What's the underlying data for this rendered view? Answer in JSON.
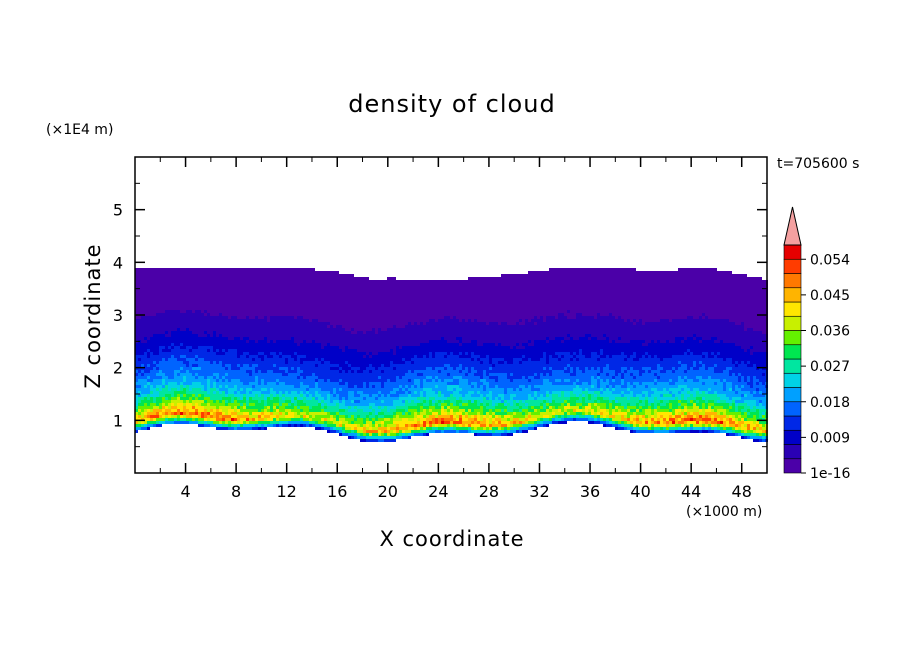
{
  "chart_data": {
    "type": "heatmap",
    "title": "density of cloud",
    "xlabel": "X coordinate",
    "ylabel": "Z coordinate",
    "x_unit": "(×1000 m)",
    "y_unit": "(×1E4 m)",
    "time_label": "t=705600 s",
    "xlim": [
      0,
      50
    ],
    "ylim": [
      0,
      6
    ],
    "x_ticks": [
      4,
      8,
      12,
      16,
      20,
      24,
      28,
      32,
      36,
      40,
      44,
      48
    ],
    "y_ticks": [
      1,
      2,
      3,
      4,
      5
    ],
    "colorbar": {
      "labels": [
        "1e-16",
        "0.009",
        "0.018",
        "0.027",
        "0.036",
        "0.045",
        "0.054"
      ],
      "colors": [
        "#4b00a8",
        "#2a00b4",
        "#0000c8",
        "#0028e6",
        "#0064ff",
        "#00a0ff",
        "#00d2e6",
        "#00e6a0",
        "#00e650",
        "#64f000",
        "#c8f000",
        "#ffe600",
        "#ffb400",
        "#ff7800",
        "#ff3c00",
        "#e60000"
      ],
      "extend_color": "#f4a0a0",
      "extend": "max"
    },
    "profile": [
      {
        "z": 0.8,
        "value": 0.009
      },
      {
        "z": 1.0,
        "value": 0.046
      },
      {
        "z": 1.2,
        "value": 0.034
      },
      {
        "z": 1.5,
        "value": 0.022
      },
      {
        "z": 1.8,
        "value": 0.016
      },
      {
        "z": 2.2,
        "value": 0.011
      },
      {
        "z": 2.6,
        "value": 0.006
      },
      {
        "z": 3.0,
        "value": 0.003
      },
      {
        "z": 3.9,
        "value": 0.0
      }
    ]
  }
}
